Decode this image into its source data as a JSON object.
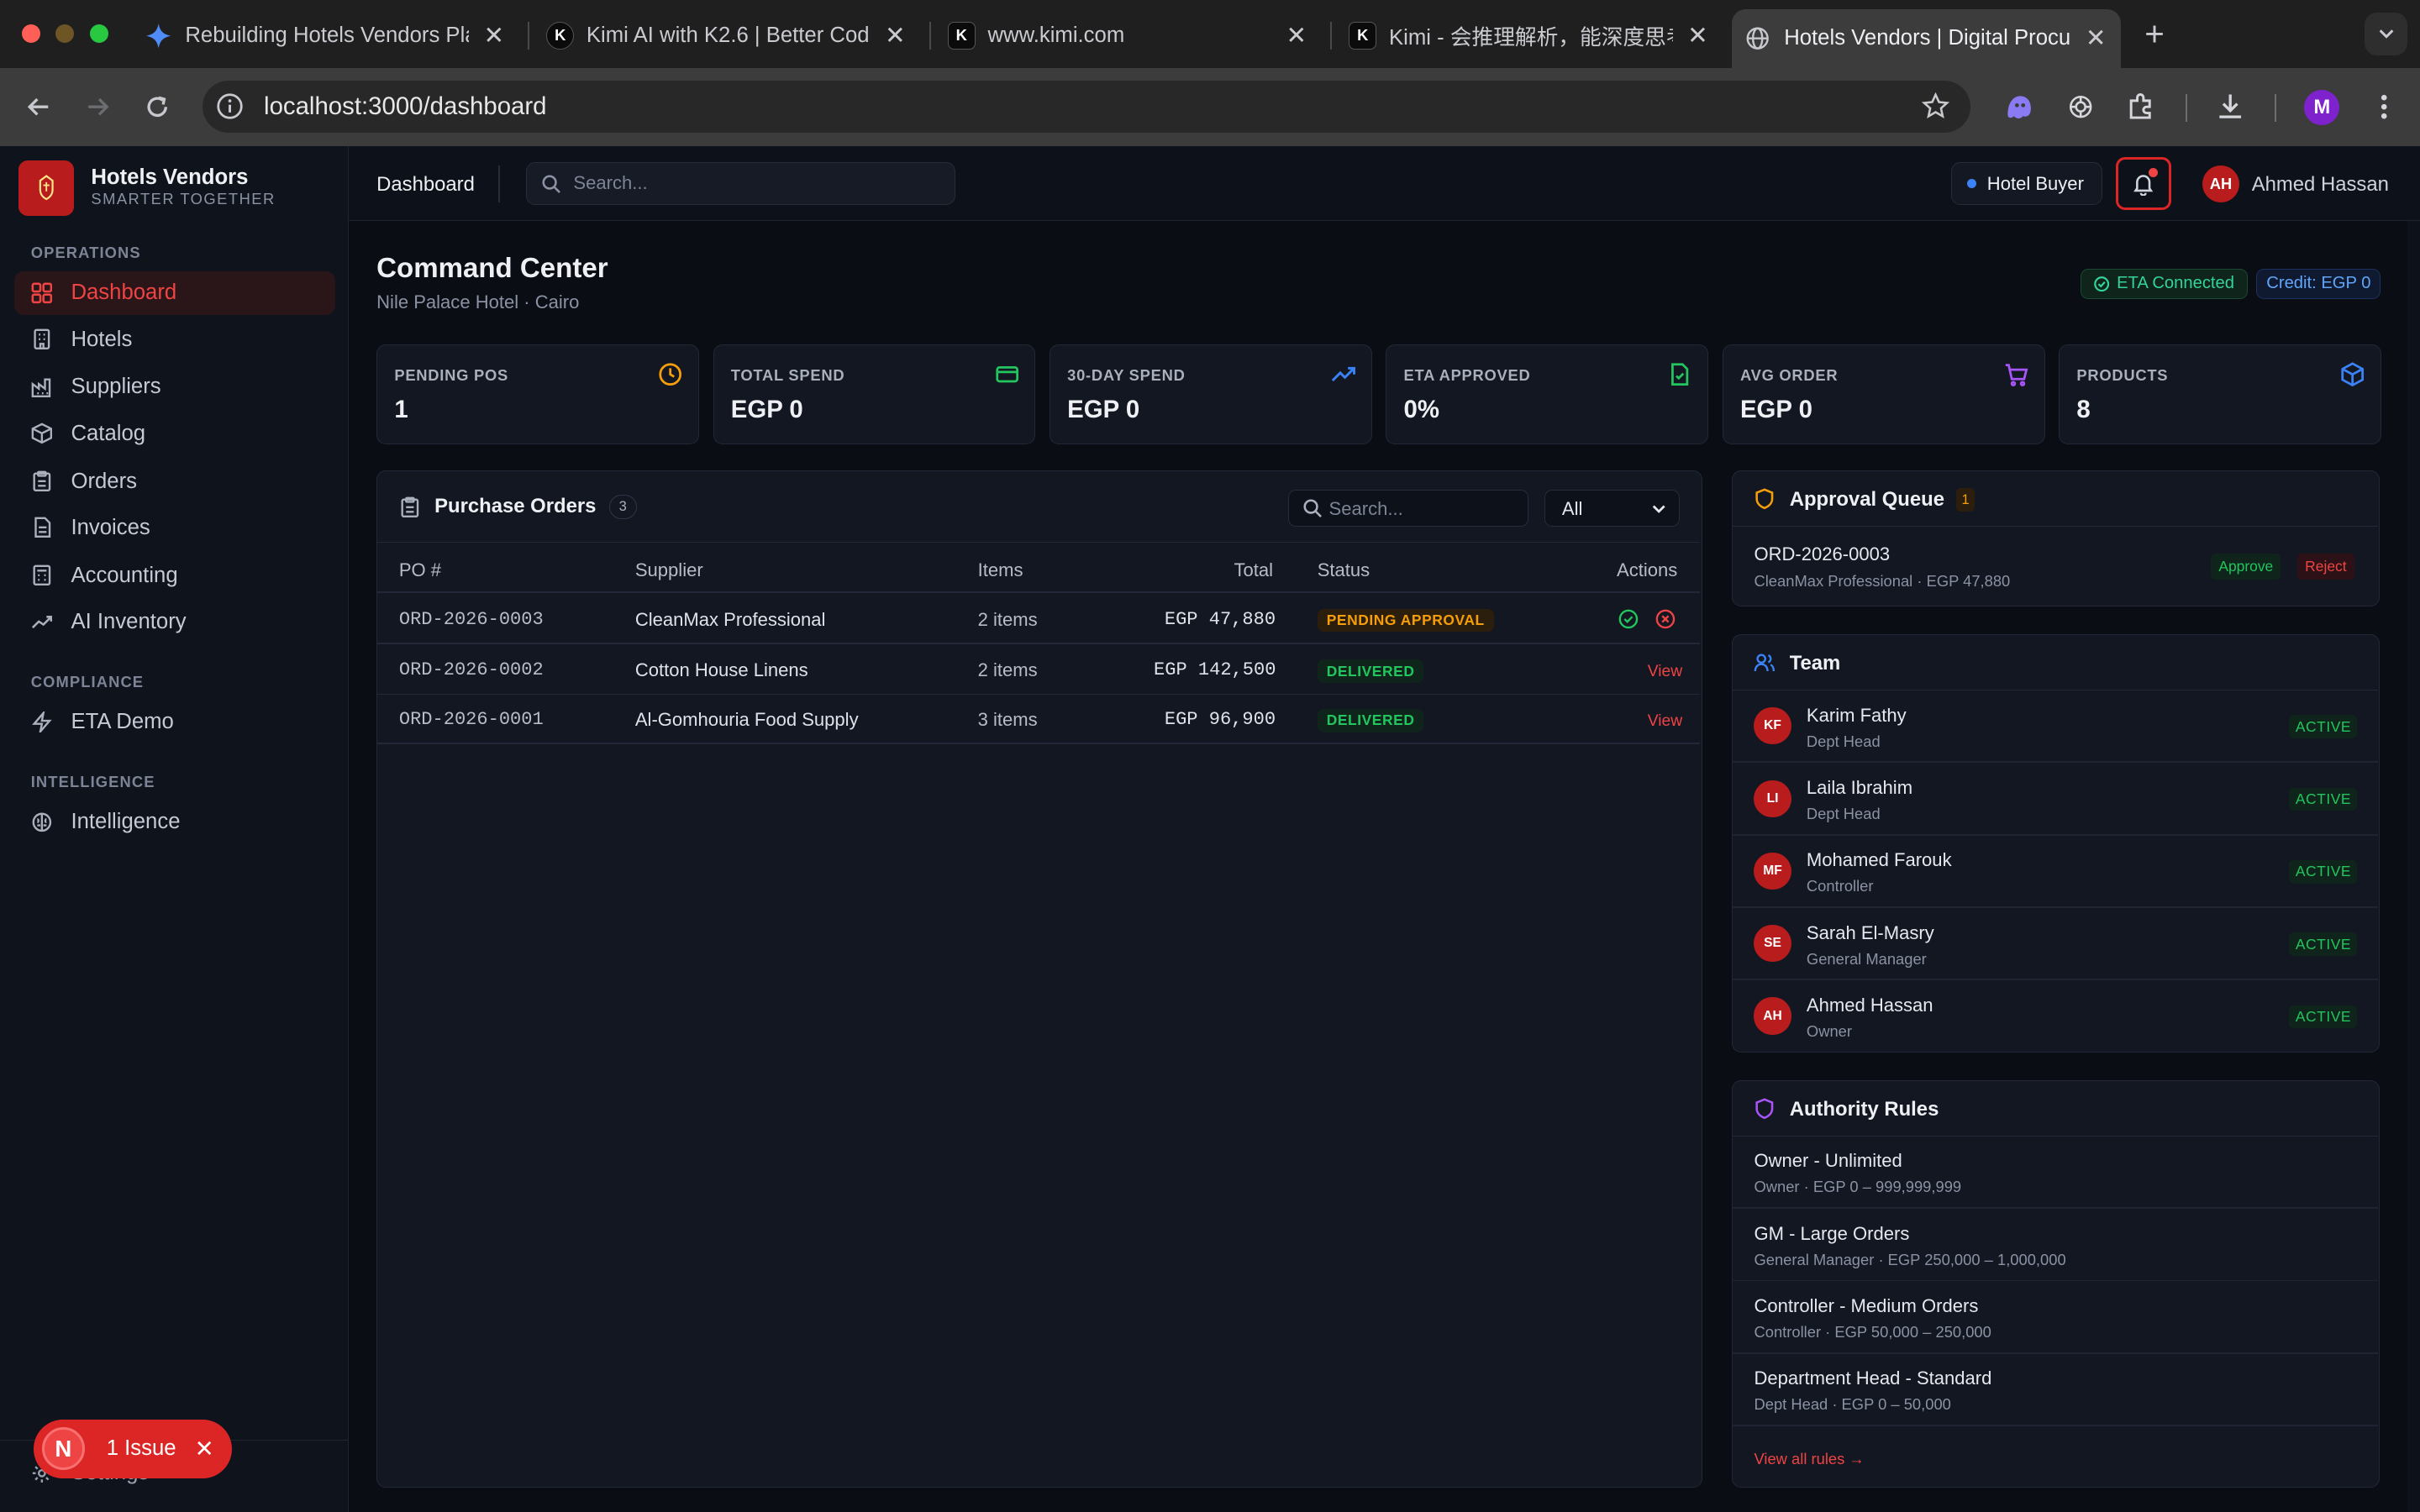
{
  "browser": {
    "tabs": [
      {
        "title": "Rebuilding Hotels Vendors Pla",
        "icon": "gemini-sparkle-icon"
      },
      {
        "title": "Kimi AI with K2.6 | Better Cod",
        "icon": "kimi-icon"
      },
      {
        "title": "www.kimi.com",
        "icon": "kimi-icon"
      },
      {
        "title": "Kimi - 会推理解析，能深度思考",
        "icon": "kimi-icon"
      },
      {
        "title": "Hotels Vendors | Digital Procu",
        "icon": "globe-icon"
      }
    ],
    "url": "localhost:3000/dashboard",
    "profile_initial": "M"
  },
  "sidebar": {
    "brand": "Hotels Vendors",
    "tagline": "SMARTER TOGETHER",
    "sections": [
      {
        "label": "OPERATIONS",
        "items": [
          {
            "label": "Dashboard",
            "icon": "grid-icon",
            "active": true
          },
          {
            "label": "Hotels",
            "icon": "building-icon"
          },
          {
            "label": "Suppliers",
            "icon": "factory-icon"
          },
          {
            "label": "Catalog",
            "icon": "box-icon"
          },
          {
            "label": "Orders",
            "icon": "clipboard-icon"
          },
          {
            "label": "Invoices",
            "icon": "file-icon"
          },
          {
            "label": "Accounting",
            "icon": "calculator-icon"
          },
          {
            "label": "AI Inventory",
            "icon": "trending-icon"
          }
        ]
      },
      {
        "label": "COMPLIANCE",
        "items": [
          {
            "label": "ETA Demo",
            "icon": "zap-icon"
          }
        ]
      },
      {
        "label": "INTELLIGENCE",
        "items": [
          {
            "label": "Intelligence",
            "icon": "brain-icon"
          }
        ]
      }
    ],
    "settings_label": "Settings"
  },
  "issue_toast": {
    "badge": "N",
    "label": "1 Issue"
  },
  "topbar": {
    "breadcrumb": "Dashboard",
    "search_placeholder": "Search...",
    "role": "Hotel Buyer",
    "user_initials": "AH",
    "user_name": "Ahmed Hassan"
  },
  "page": {
    "title": "Command Center",
    "subtitle": "Nile Palace Hotel · Cairo",
    "eta_status": "ETA Connected",
    "credit": "Credit: EGP 0"
  },
  "kpis": [
    {
      "label": "PENDING POS",
      "value": "1",
      "icon": "clock-icon",
      "color": "#f59e0b"
    },
    {
      "label": "TOTAL SPEND",
      "value": "EGP 0",
      "icon": "credit-card-icon",
      "color": "#22c55e"
    },
    {
      "label": "30-DAY SPEND",
      "value": "EGP 0",
      "icon": "trending-up-icon",
      "color": "#3b82f6"
    },
    {
      "label": "ETA APPROVED",
      "value": "0%",
      "icon": "file-check-icon",
      "color": "#22c55e"
    },
    {
      "label": "AVG ORDER",
      "value": "EGP 0",
      "icon": "cart-icon",
      "color": "#a855f7"
    },
    {
      "label": "PRODUCTS",
      "value": "8",
      "icon": "package-icon",
      "color": "#3b82f6"
    }
  ],
  "purchase_orders": {
    "title": "Purchase Orders",
    "count": "3",
    "search_placeholder": "Search...",
    "filter_value": "All",
    "columns": [
      "PO #",
      "Supplier",
      "Items",
      "Total",
      "Status",
      "Actions"
    ],
    "rows": [
      {
        "po": "ORD-2026-0003",
        "supplier": "CleanMax Professional",
        "items": "2 items",
        "total": "EGP 47,880",
        "status": "PENDING APPROVAL",
        "status_kind": "pending",
        "action": "approve-reject"
      },
      {
        "po": "ORD-2026-0002",
        "supplier": "Cotton House Linens",
        "items": "2 items",
        "total": "EGP 142,500",
        "status": "DELIVERED",
        "status_kind": "delivered",
        "action": "View"
      },
      {
        "po": "ORD-2026-0001",
        "supplier": "Al-Gomhouria Food Supply",
        "items": "3 items",
        "total": "EGP 96,900",
        "status": "DELIVERED",
        "status_kind": "delivered",
        "action": "View"
      }
    ]
  },
  "approval_queue": {
    "title": "Approval Queue",
    "count": "1",
    "items": [
      {
        "order": "ORD-2026-0003",
        "detail": "CleanMax Professional · EGP 47,880",
        "approve": "Approve",
        "reject": "Reject"
      }
    ]
  },
  "team": {
    "title": "Team",
    "members": [
      {
        "initials": "KF",
        "name": "Karim Fathy",
        "role": "Dept Head",
        "status": "ACTIVE"
      },
      {
        "initials": "LI",
        "name": "Laila Ibrahim",
        "role": "Dept Head",
        "status": "ACTIVE"
      },
      {
        "initials": "MF",
        "name": "Mohamed Farouk",
        "role": "Controller",
        "status": "ACTIVE"
      },
      {
        "initials": "SE",
        "name": "Sarah El-Masry",
        "role": "General Manager",
        "status": "ACTIVE"
      },
      {
        "initials": "AH",
        "name": "Ahmed Hassan",
        "role": "Owner",
        "status": "ACTIVE"
      }
    ]
  },
  "authority_rules": {
    "title": "Authority Rules",
    "rules": [
      {
        "name": "Owner - Unlimited",
        "detail": "Owner · EGP 0 – 999,999,999"
      },
      {
        "name": "GM - Large Orders",
        "detail": "General Manager · EGP 250,000 – 1,000,000"
      },
      {
        "name": "Controller - Medium Orders",
        "detail": "Controller · EGP 50,000 – 250,000"
      },
      {
        "name": "Department Head - Standard",
        "detail": "Dept Head · EGP 0 – 50,000"
      }
    ],
    "view_all": "View all rules →"
  }
}
